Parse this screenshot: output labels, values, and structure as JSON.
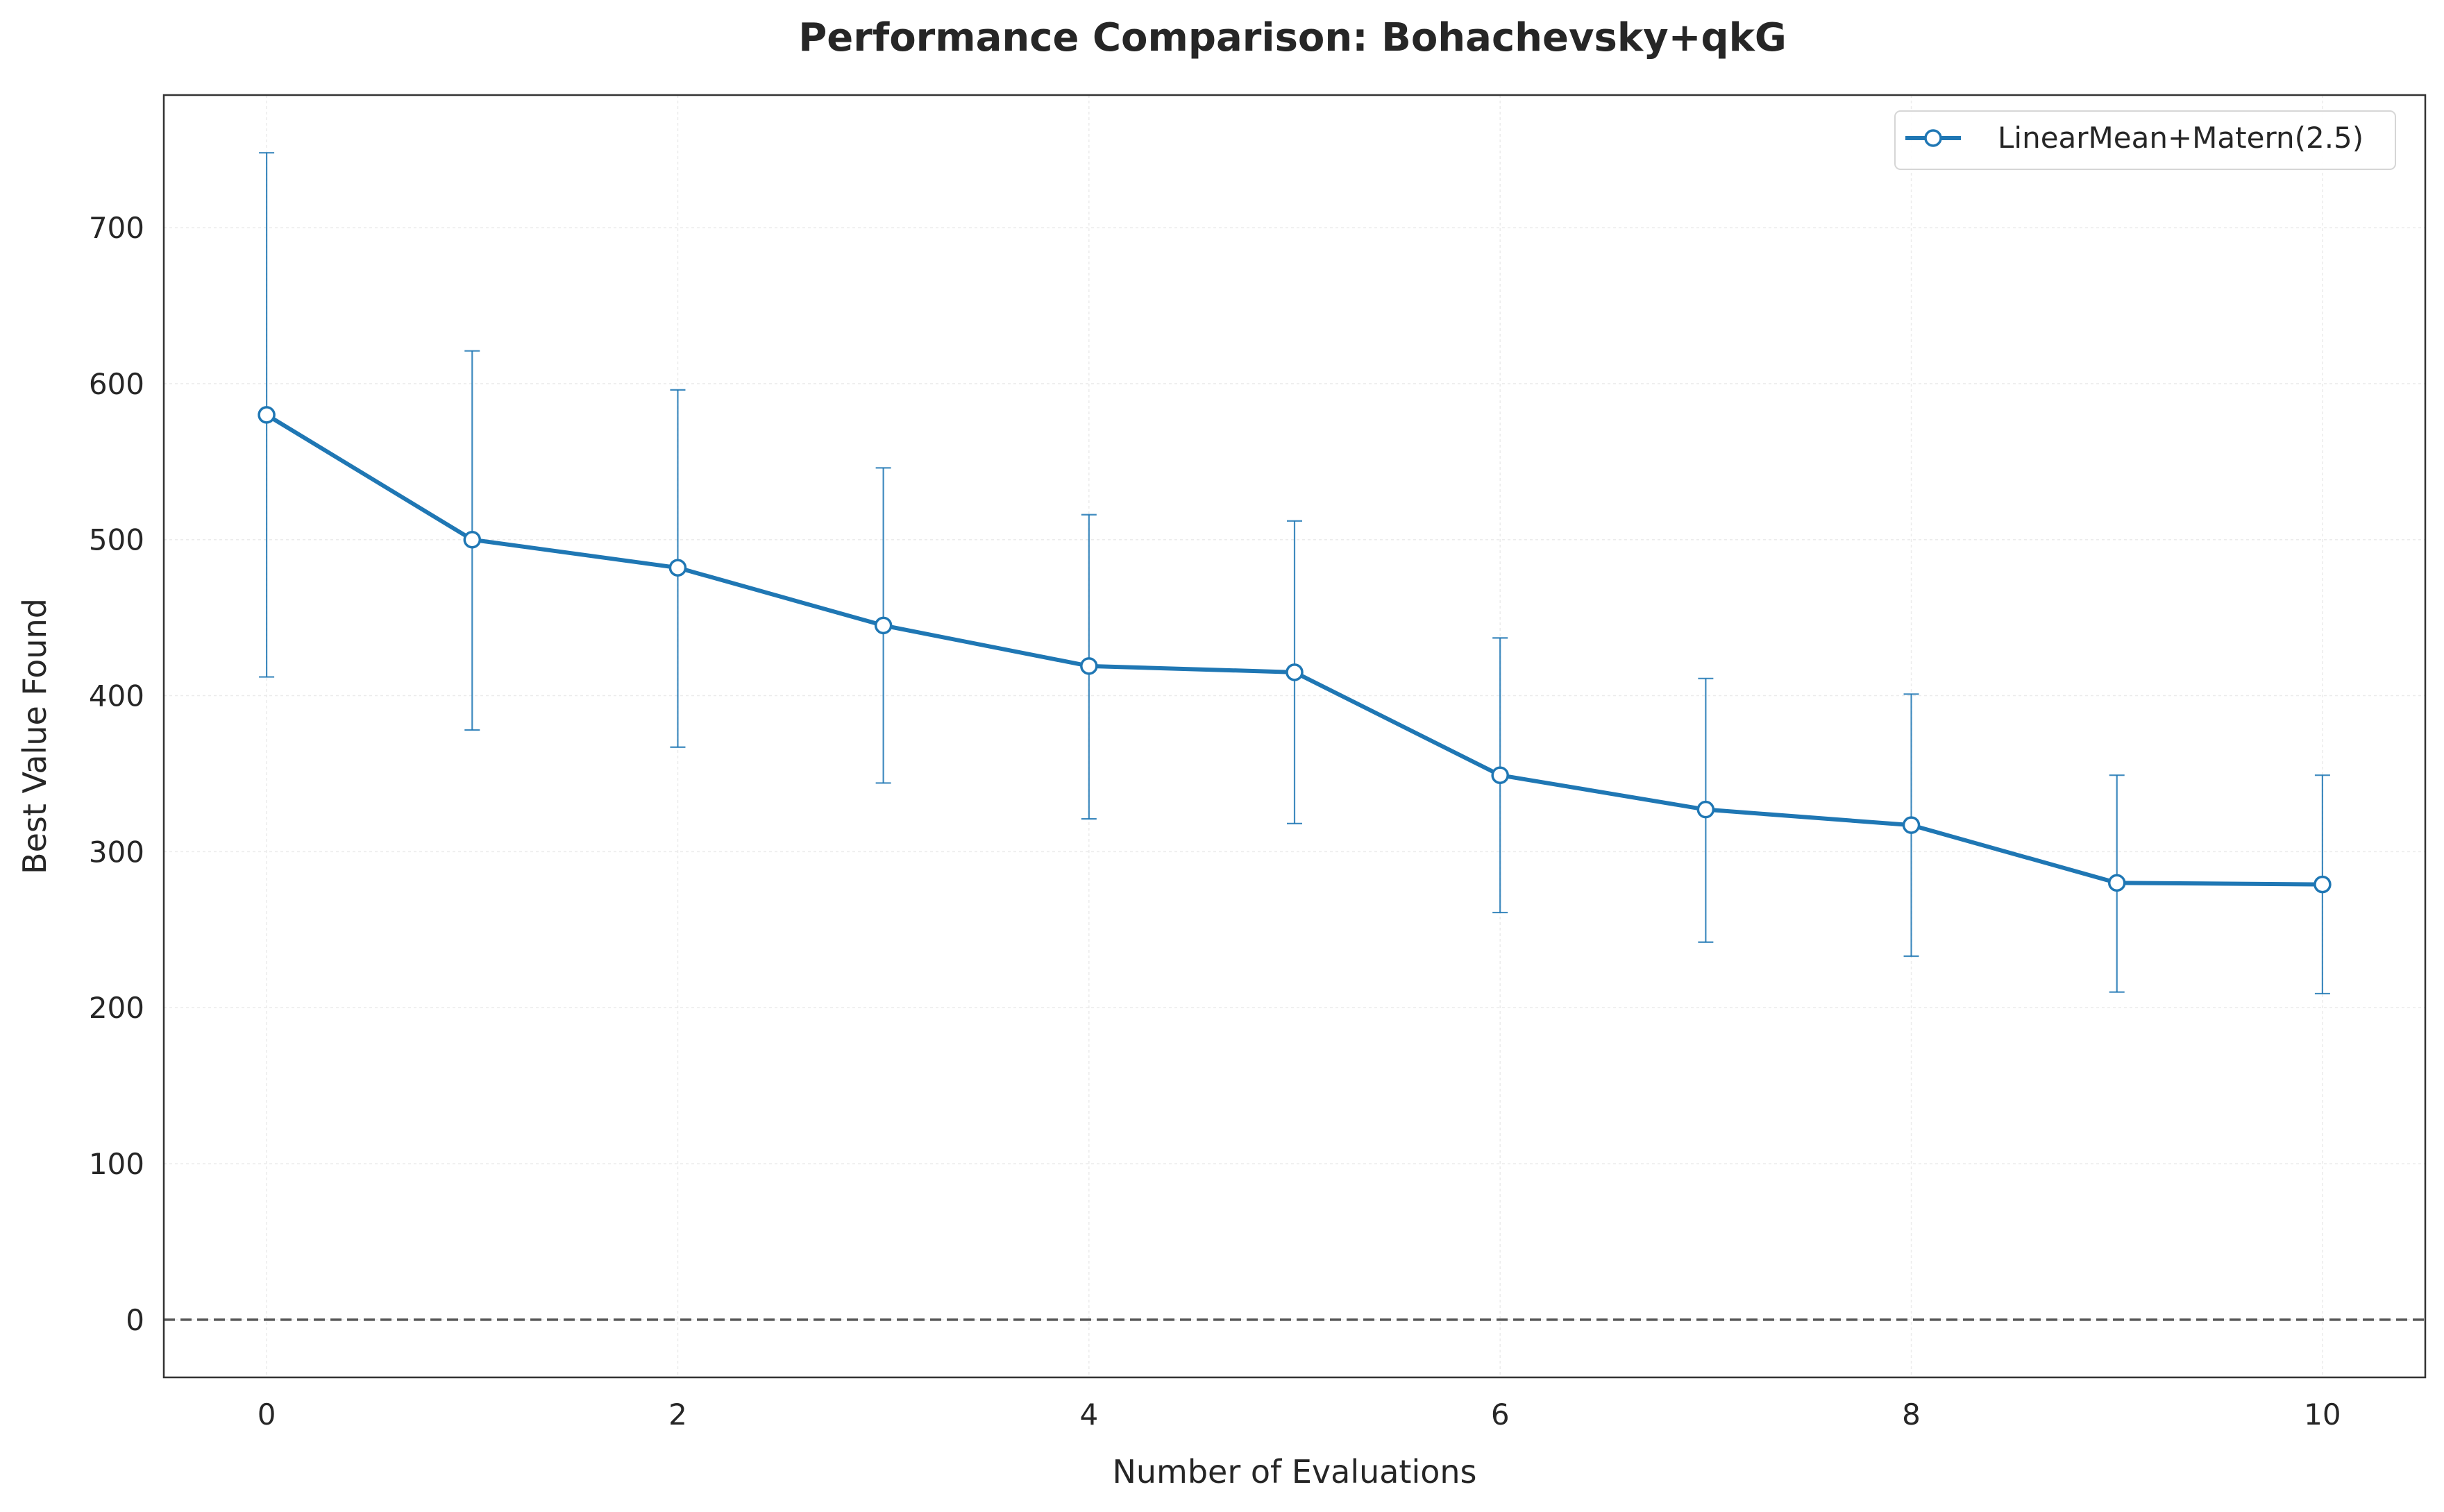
{
  "chart_data": {
    "type": "line",
    "title": "Performance Comparison: Bohachevsky+qkG",
    "xlabel": "Number of Evaluations",
    "ylabel": "Best Value Found",
    "xlim": [
      -0.5,
      10.5
    ],
    "ylim": [
      -37,
      785
    ],
    "xticks": [
      0,
      2,
      4,
      6,
      8,
      10
    ],
    "yticks": [
      0,
      100,
      200,
      300,
      400,
      500,
      600,
      700
    ],
    "grid": true,
    "legend_position": "top-right",
    "reference_line": {
      "y": 0,
      "style": "dashed",
      "color": "#555555"
    },
    "series": [
      {
        "name": "LinearMean+Matern(2.5)",
        "color": "#1f77b4",
        "marker": "circle-open",
        "x": [
          0,
          1,
          2,
          3,
          4,
          5,
          6,
          7,
          8,
          9,
          10
        ],
        "y": [
          580,
          500,
          482,
          445,
          419,
          415,
          349,
          327,
          317,
          280,
          279
        ],
        "error_upper": [
          748,
          621,
          596,
          546,
          516,
          512,
          437,
          411,
          401,
          349,
          349
        ],
        "error_lower": [
          412,
          378,
          367,
          344,
          321,
          318,
          261,
          242,
          233,
          210,
          209
        ]
      }
    ]
  }
}
